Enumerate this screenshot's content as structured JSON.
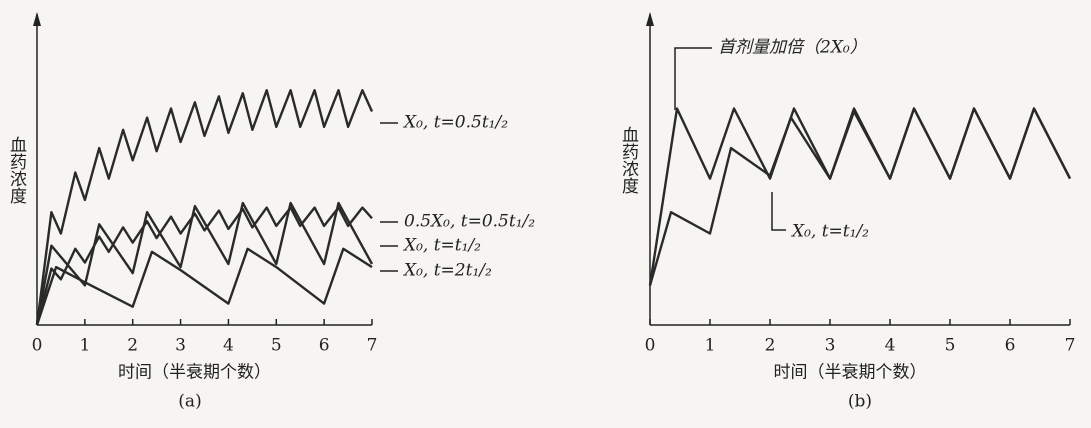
{
  "chart_data": [
    {
      "type": "line",
      "y_label": "血药浓度",
      "x_label": "时间（半衰期个数）",
      "caption": "(a)",
      "xlim": [
        0,
        7
      ],
      "xticks": [
        0,
        1,
        2,
        3,
        4,
        5,
        6,
        7
      ],
      "ylim": [
        0,
        100
      ],
      "series": [
        {
          "name": "X₀, t=0.5t₁/₂",
          "color": "#2a2a2a",
          "x": [
            0,
            0.3,
            0.5,
            0.8,
            1.0,
            1.3,
            1.5,
            1.8,
            2.0,
            2.3,
            2.5,
            2.8,
            3.0,
            3.3,
            3.5,
            3.8,
            4.0,
            4.3,
            4.5,
            4.8,
            5.0,
            5.3,
            5.5,
            5.8,
            6.0,
            6.3,
            6.5,
            6.8,
            7.0
          ],
          "values": [
            0,
            37,
            30,
            50,
            41,
            58,
            48,
            64,
            54,
            68,
            57,
            71,
            60,
            73,
            62,
            75,
            63,
            76,
            64,
            77,
            65,
            77,
            65,
            77,
            65,
            77,
            65,
            77,
            70
          ]
        },
        {
          "name": "0.5X₀, t=0.5t₁/₂",
          "color": "#2a2a2a",
          "x": [
            0,
            0.3,
            0.5,
            0.8,
            1.0,
            1.3,
            1.5,
            1.8,
            2.0,
            2.3,
            2.5,
            2.8,
            3.0,
            3.3,
            3.5,
            3.8,
            4.0,
            4.3,
            4.5,
            4.8,
            5.0,
            5.3,
            5.5,
            5.8,
            6.0,
            6.3,
            6.5,
            6.8,
            7.0
          ],
          "values": [
            0,
            18.5,
            15,
            25,
            20.5,
            29,
            24,
            32,
            27,
            34,
            28.5,
            35.5,
            30,
            36.5,
            31,
            37.5,
            31.5,
            38,
            32,
            38.5,
            32.5,
            38.5,
            32.5,
            38.5,
            32.5,
            38.5,
            32.5,
            38.5,
            35
          ]
        },
        {
          "name": "X₀, t=t₁/₂",
          "color": "#2a2a2a",
          "x": [
            0,
            0.3,
            1.0,
            1.3,
            2.0,
            2.3,
            3.0,
            3.3,
            4.0,
            4.3,
            5.0,
            5.3,
            6.0,
            6.3,
            7.0
          ],
          "values": [
            0,
            26,
            13,
            33,
            17,
            37,
            19,
            39,
            20,
            40,
            20,
            40,
            20,
            40,
            20
          ]
        },
        {
          "name": "X₀, t=2t₁/₂",
          "color": "#2a2a2a",
          "x": [
            0,
            0.4,
            1.0,
            2.0,
            2.4,
            3.0,
            4.0,
            4.4,
            5.0,
            6.0,
            6.4,
            7.0
          ],
          "values": [
            0,
            19,
            14,
            6,
            24,
            18,
            7,
            25,
            19,
            7,
            25,
            19
          ]
        }
      ]
    },
    {
      "type": "line",
      "y_label": "血药浓度",
      "x_label": "时间（半衰期个数）",
      "caption": "(b)",
      "xlim": [
        0,
        7
      ],
      "xticks": [
        0,
        1,
        2,
        3,
        4,
        5,
        6,
        7
      ],
      "ylim": [
        0,
        100
      ],
      "series": [
        {
          "name": "首剂量加倍（2X₀）",
          "color": "#2a2a2a",
          "x": [
            0,
            0.45,
            1.0,
            1.4,
            2.0,
            2.4,
            3.0,
            3.4,
            4.0,
            4.4,
            5.0,
            5.4,
            6.0,
            6.4,
            7.0
          ],
          "values": [
            13,
            71,
            48,
            71,
            48,
            71,
            48,
            71,
            48,
            71,
            48,
            71,
            48,
            71,
            48
          ]
        },
        {
          "name": "X₀, t=t₁/₂",
          "color": "#2a2a2a",
          "x": [
            0,
            0.35,
            1.0,
            1.35,
            2.0,
            2.35,
            3.0,
            3.4,
            4.0,
            4.4,
            5.0,
            5.4,
            6.0,
            6.4,
            7.0
          ],
          "values": [
            13,
            37,
            30,
            58,
            49,
            68,
            48,
            70,
            48,
            71,
            48,
            71,
            48,
            71,
            48
          ]
        }
      ]
    }
  ]
}
